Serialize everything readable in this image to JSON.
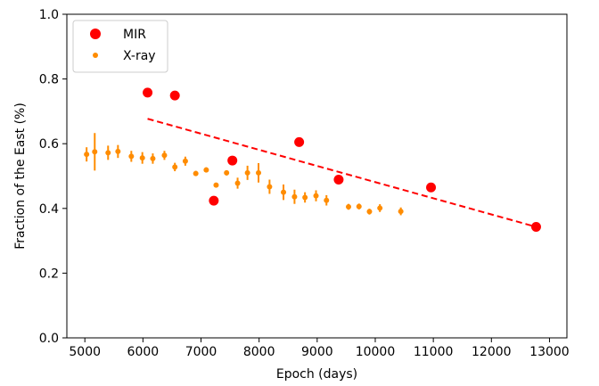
{
  "chart_data": {
    "type": "scatter",
    "xlabel": "Epoch (days)",
    "ylabel": "Fraction of the East (%)",
    "xlim": [
      4690,
      13300
    ],
    "ylim": [
      0.0,
      1.0
    ],
    "x_ticks": [
      5000,
      6000,
      7000,
      8000,
      9000,
      10000,
      11000,
      12000,
      13000
    ],
    "y_ticks": [
      "0.0",
      "0.2",
      "0.4",
      "0.6",
      "0.8",
      "1.0"
    ],
    "legend_position": "top-left",
    "series": [
      {
        "name": "MIR",
        "color": "#ff0000",
        "marker": "large-circle",
        "points": [
          {
            "x": 6080,
            "y": 0.758
          },
          {
            "x": 6550,
            "y": 0.749
          },
          {
            "x": 7220,
            "y": 0.424
          },
          {
            "x": 7540,
            "y": 0.548
          },
          {
            "x": 8690,
            "y": 0.605
          },
          {
            "x": 9370,
            "y": 0.489
          },
          {
            "x": 10960,
            "y": 0.465
          },
          {
            "x": 12770,
            "y": 0.343
          }
        ]
      },
      {
        "name": "X-ray",
        "color": "#ff8c00",
        "marker": "small-circle-with-error-bars",
        "points": [
          {
            "x": 5030,
            "y": 0.567,
            "err": 0.022
          },
          {
            "x": 5170,
            "y": 0.575,
            "err": 0.058
          },
          {
            "x": 5400,
            "y": 0.572,
            "err": 0.022
          },
          {
            "x": 5570,
            "y": 0.576,
            "err": 0.02
          },
          {
            "x": 5800,
            "y": 0.561,
            "err": 0.017
          },
          {
            "x": 5990,
            "y": 0.556,
            "err": 0.018
          },
          {
            "x": 6170,
            "y": 0.554,
            "err": 0.016
          },
          {
            "x": 6370,
            "y": 0.564,
            "err": 0.014
          },
          {
            "x": 6550,
            "y": 0.528,
            "err": 0.013
          },
          {
            "x": 6730,
            "y": 0.546,
            "err": 0.014
          },
          {
            "x": 6910,
            "y": 0.508,
            "err": 0.008
          },
          {
            "x": 7090,
            "y": 0.519,
            "err": 0.008
          },
          {
            "x": 7260,
            "y": 0.472,
            "err": 0.007
          },
          {
            "x": 7440,
            "y": 0.51,
            "err": 0.008
          },
          {
            "x": 7630,
            "y": 0.478,
            "err": 0.017
          },
          {
            "x": 7800,
            "y": 0.51,
            "err": 0.022
          },
          {
            "x": 7990,
            "y": 0.51,
            "err": 0.03
          },
          {
            "x": 8180,
            "y": 0.467,
            "err": 0.022
          },
          {
            "x": 8420,
            "y": 0.45,
            "err": 0.024
          },
          {
            "x": 8610,
            "y": 0.436,
            "err": 0.022
          },
          {
            "x": 8790,
            "y": 0.434,
            "err": 0.016
          },
          {
            "x": 8980,
            "y": 0.439,
            "err": 0.017
          },
          {
            "x": 9160,
            "y": 0.425,
            "err": 0.016
          },
          {
            "x": 9540,
            "y": 0.405,
            "err": 0.009
          },
          {
            "x": 9720,
            "y": 0.406,
            "err": 0.009
          },
          {
            "x": 9900,
            "y": 0.39,
            "err": 0.009
          },
          {
            "x": 10080,
            "y": 0.401,
            "err": 0.012
          },
          {
            "x": 10440,
            "y": 0.391,
            "err": 0.012
          }
        ]
      }
    ],
    "trend_line": {
      "color": "#ff0000",
      "style": "dashed",
      "x": [
        6080,
        12770
      ],
      "y": [
        0.677,
        0.343
      ]
    }
  }
}
